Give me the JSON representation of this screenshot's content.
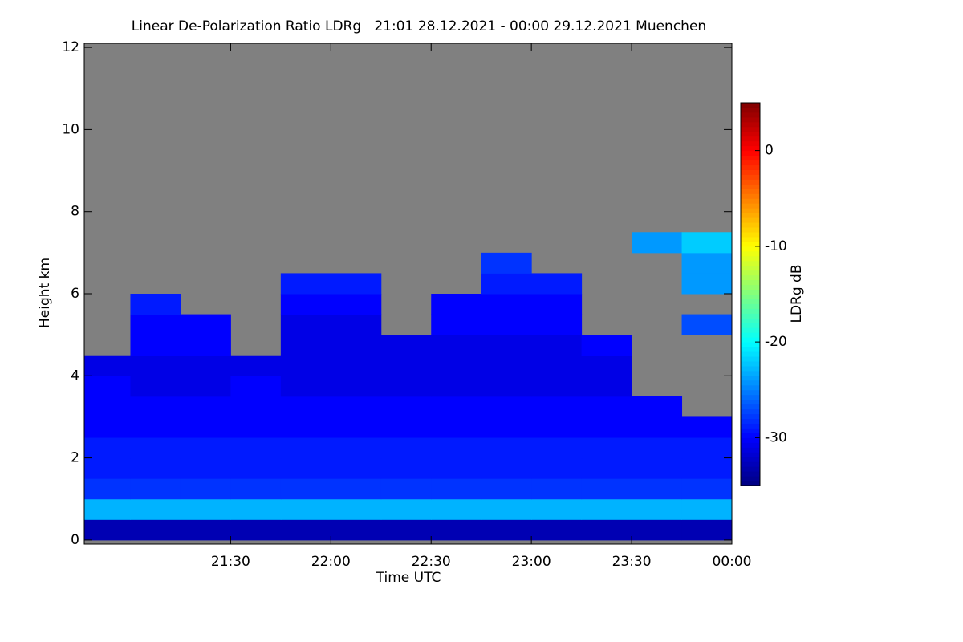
{
  "chart_data": {
    "type": "heatmap",
    "title": "Linear De-Polarization Ratio LDRg   21:01 28.12.2021 - 00:00 29.12.2021 Muenchen",
    "x_label": "Time UTC",
    "y_label": "Height km",
    "colorbar_label": "LDRg dB",
    "x": [
      20.77,
      21,
      21.25,
      21.5,
      21.75,
      22,
      22.25,
      22.5,
      22.75,
      23,
      23.25,
      23.5,
      23.75,
      24
    ],
    "y": [
      0,
      0.5,
      1,
      1.5,
      2,
      2.5,
      3,
      3.5,
      4,
      4.5,
      5,
      5.5,
      6,
      6.5,
      7,
      7.5
    ],
    "z": [
      [
        -33,
        -33,
        -33,
        -33,
        -33,
        -33,
        -33,
        -33,
        -33,
        -33,
        -33,
        -33,
        -33
      ],
      [
        -23,
        -23,
        -23,
        -23,
        -23,
        -23,
        -23,
        -23,
        -23,
        -23,
        -23,
        -23,
        -23
      ],
      [
        -28,
        -28,
        -28,
        -28,
        -28,
        -28,
        -28,
        -28,
        -28,
        -28,
        -28,
        -28,
        -28
      ],
      [
        -29,
        -29,
        -29,
        -29,
        -29,
        -29,
        -29,
        -29,
        -29,
        -29,
        -29,
        -29,
        -29
      ],
      [
        -29,
        -29,
        -29,
        -29,
        -29,
        -29,
        -29,
        -29,
        -29,
        -29,
        -29,
        -29,
        -29
      ],
      [
        -30,
        -30,
        -30,
        -30,
        -30,
        -30,
        -30,
        -30,
        -30,
        -30,
        -30,
        -30,
        -30
      ],
      [
        -30,
        -30,
        -30,
        -30,
        -30,
        -30,
        -30,
        -30,
        -30,
        -30,
        -30,
        -30,
        null
      ],
      [
        -30,
        -31,
        -31,
        -30,
        -31,
        -31,
        -31,
        -31,
        -31,
        -31,
        -31,
        null,
        null
      ],
      [
        -31,
        -31,
        -31,
        -31,
        -31,
        -31,
        -31,
        -31,
        -31,
        -31,
        -31,
        null,
        null
      ],
      [
        null,
        -30,
        -30,
        null,
        -31,
        -31,
        -31,
        -31,
        -31,
        -31,
        -30,
        null,
        null
      ],
      [
        null,
        -30,
        -30,
        null,
        -31,
        -31,
        null,
        -30,
        -30,
        -30,
        null,
        null,
        -27
      ],
      [
        null,
        -29,
        null,
        null,
        -30,
        -30,
        null,
        -30,
        -30,
        -30,
        null,
        null,
        null
      ],
      [
        null,
        null,
        null,
        null,
        -29,
        -29,
        null,
        null,
        -29,
        -29,
        null,
        null,
        -24
      ],
      [
        null,
        null,
        null,
        null,
        null,
        null,
        null,
        null,
        -28,
        null,
        null,
        null,
        -24
      ],
      [
        null,
        null,
        null,
        null,
        null,
        null,
        null,
        null,
        null,
        null,
        null,
        -24,
        -22
      ]
    ],
    "xlim": [
      20.77,
      24.0
    ],
    "xticks": [
      {
        "value": 21.5,
        "label": "21:30"
      },
      {
        "value": 22,
        "label": "22:00"
      },
      {
        "value": 22.5,
        "label": "22:30"
      },
      {
        "value": 23,
        "label": "23:00"
      },
      {
        "value": 23.5,
        "label": "23:30"
      },
      {
        "value": 24,
        "label": "00:00"
      }
    ],
    "ylim": [
      -0.1,
      12.1
    ],
    "yticks": [
      0,
      2,
      4,
      6,
      8,
      10,
      12
    ],
    "zlim": [
      -35,
      5
    ],
    "zticks": [
      0,
      -10,
      -20,
      -30
    ],
    "colormap": "jet",
    "no_data_color": "#808080"
  }
}
